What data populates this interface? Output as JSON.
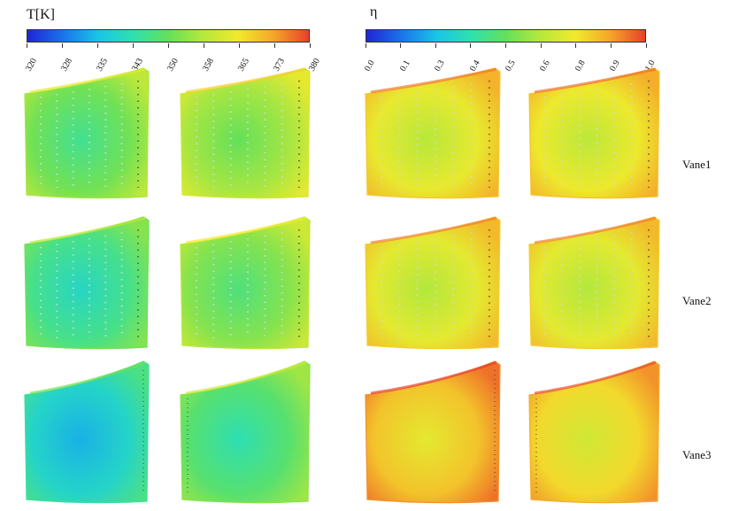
{
  "temperature_colorbar": {
    "title": "T[K]",
    "ticks": [
      "320",
      "328",
      "335",
      "343",
      "350",
      "358",
      "365",
      "373",
      "380"
    ]
  },
  "efficiency_colorbar": {
    "title": "η",
    "ticks": [
      "0.0",
      "0.1",
      "0.3",
      "0.4",
      "0.5",
      "0.6",
      "0.8",
      "0.9",
      "1.0"
    ]
  },
  "colormap": [
    "#1f25d6",
    "#1a73e8",
    "#19c4e6",
    "#2fe0b0",
    "#64e05a",
    "#b6e83c",
    "#f2e92c",
    "#f4a62a",
    "#e8402a"
  ],
  "row_labels": [
    "Vane1",
    "Vane2",
    "Vane3"
  ],
  "vanes": [
    {
      "row": "Vane1",
      "panel": "T-pressure",
      "fill_level": 0.42
    },
    {
      "row": "Vane1",
      "panel": "T-suction",
      "fill_level": 0.5
    },
    {
      "row": "Vane1",
      "panel": "eta-pressure",
      "fill_level": 0.63
    },
    {
      "row": "Vane1",
      "panel": "eta-suction",
      "fill_level": 0.64
    },
    {
      "row": "Vane2",
      "panel": "T-pressure",
      "fill_level": 0.33
    },
    {
      "row": "Vane2",
      "panel": "T-suction",
      "fill_level": 0.45
    },
    {
      "row": "Vane2",
      "panel": "eta-pressure",
      "fill_level": 0.62
    },
    {
      "row": "Vane2",
      "panel": "eta-suction",
      "fill_level": 0.62
    },
    {
      "row": "Vane3",
      "panel": "T-pressure",
      "fill_level": 0.22
    },
    {
      "row": "Vane3",
      "panel": "T-suction",
      "fill_level": 0.37
    },
    {
      "row": "Vane3",
      "panel": "eta-pressure",
      "fill_level": 0.72
    },
    {
      "row": "Vane3",
      "panel": "eta-suction",
      "fill_level": 0.68
    }
  ]
}
